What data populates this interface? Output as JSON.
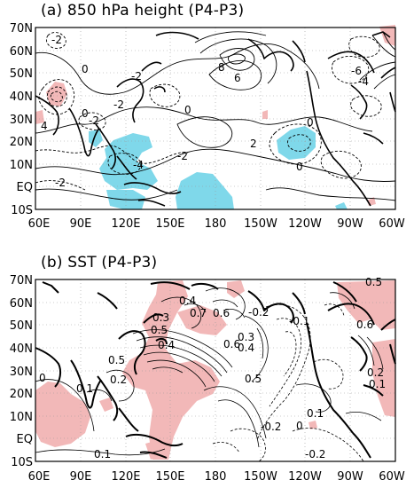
{
  "panels": [
    {
      "title": "(a) 850 hPa height (P4-P3)",
      "lat_labels": [
        "70N",
        "60N",
        "50N",
        "40N",
        "30N",
        "20N",
        "10N",
        "EQ",
        "10S"
      ],
      "lon_labels": [
        "60E",
        "90E",
        "120E",
        "150E",
        "180",
        "150W",
        "120W",
        "90W",
        "60W"
      ],
      "contour_labels": [
        "-2",
        "0",
        "-2",
        "4",
        "0",
        "-2",
        "-4",
        "-2",
        "-2",
        "0",
        "8",
        "6",
        "-6",
        "-4",
        "0",
        "2",
        "0",
        "-2"
      ]
    },
    {
      "title": "(b) SST (P4-P3)",
      "lat_labels": [
        "70N",
        "60N",
        "50N",
        "40N",
        "30N",
        "20N",
        "10N",
        "EQ",
        "10S"
      ],
      "lon_labels": [
        "60E",
        "90E",
        "120E",
        "150E",
        "180",
        "150W",
        "120W",
        "90W",
        "60W"
      ],
      "contour_labels": [
        "0.4",
        "0.3",
        "0.7",
        "0.6",
        "-0.2",
        "0.5",
        "0.4",
        "0.6",
        "0.3",
        "0.4",
        "-0.1",
        "0.5",
        "0.2",
        "0.6",
        "0.5",
        "0.1",
        "0",
        "0.2",
        "0.1",
        "0.1",
        "-0.2",
        "0",
        "-0.2",
        "0.1"
      ]
    }
  ],
  "colors": {
    "shade_negative": "#7fd8ea",
    "shade_positive": "#f2b8b8",
    "coast": "#000000",
    "contour": "#000000",
    "grid": "#9a9a9a"
  }
}
